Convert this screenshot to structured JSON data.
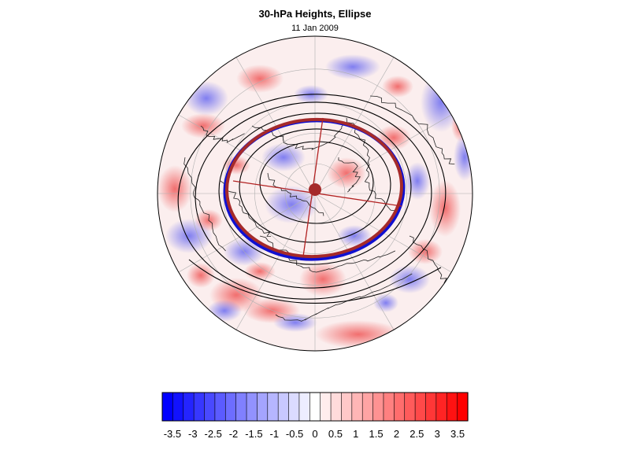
{
  "title": "30-hPa Heights, Ellipse",
  "date": "11 Jan 2009",
  "colorbar": {
    "tick_labels": [
      "-3.5",
      "-3",
      "-2.5",
      "-2",
      "-1.5",
      "-1",
      "-0.5",
      "0",
      "0.5",
      "1",
      "1.5",
      "2",
      "2.5",
      "3",
      "3.5"
    ],
    "min": -3.75,
    "max": 3.75,
    "levels": 29,
    "color_negative": "#0000ff",
    "color_positive": "#ff0000",
    "color_zero": "#ffffff"
  },
  "map": {
    "projection": "polar stereographic, north pole",
    "field_colors": {
      "anomaly_positive": "#f08080",
      "anomaly_negative": "#8080f0",
      "background": "#fbeeee"
    },
    "ellipse": {
      "fit_color": "#a52a2a",
      "observed_color": "#1010d0",
      "axis_color": "#b22222"
    },
    "contour_color": "#000000",
    "coastline_color": "#222222",
    "grid_color": "#b0b0b0"
  }
}
